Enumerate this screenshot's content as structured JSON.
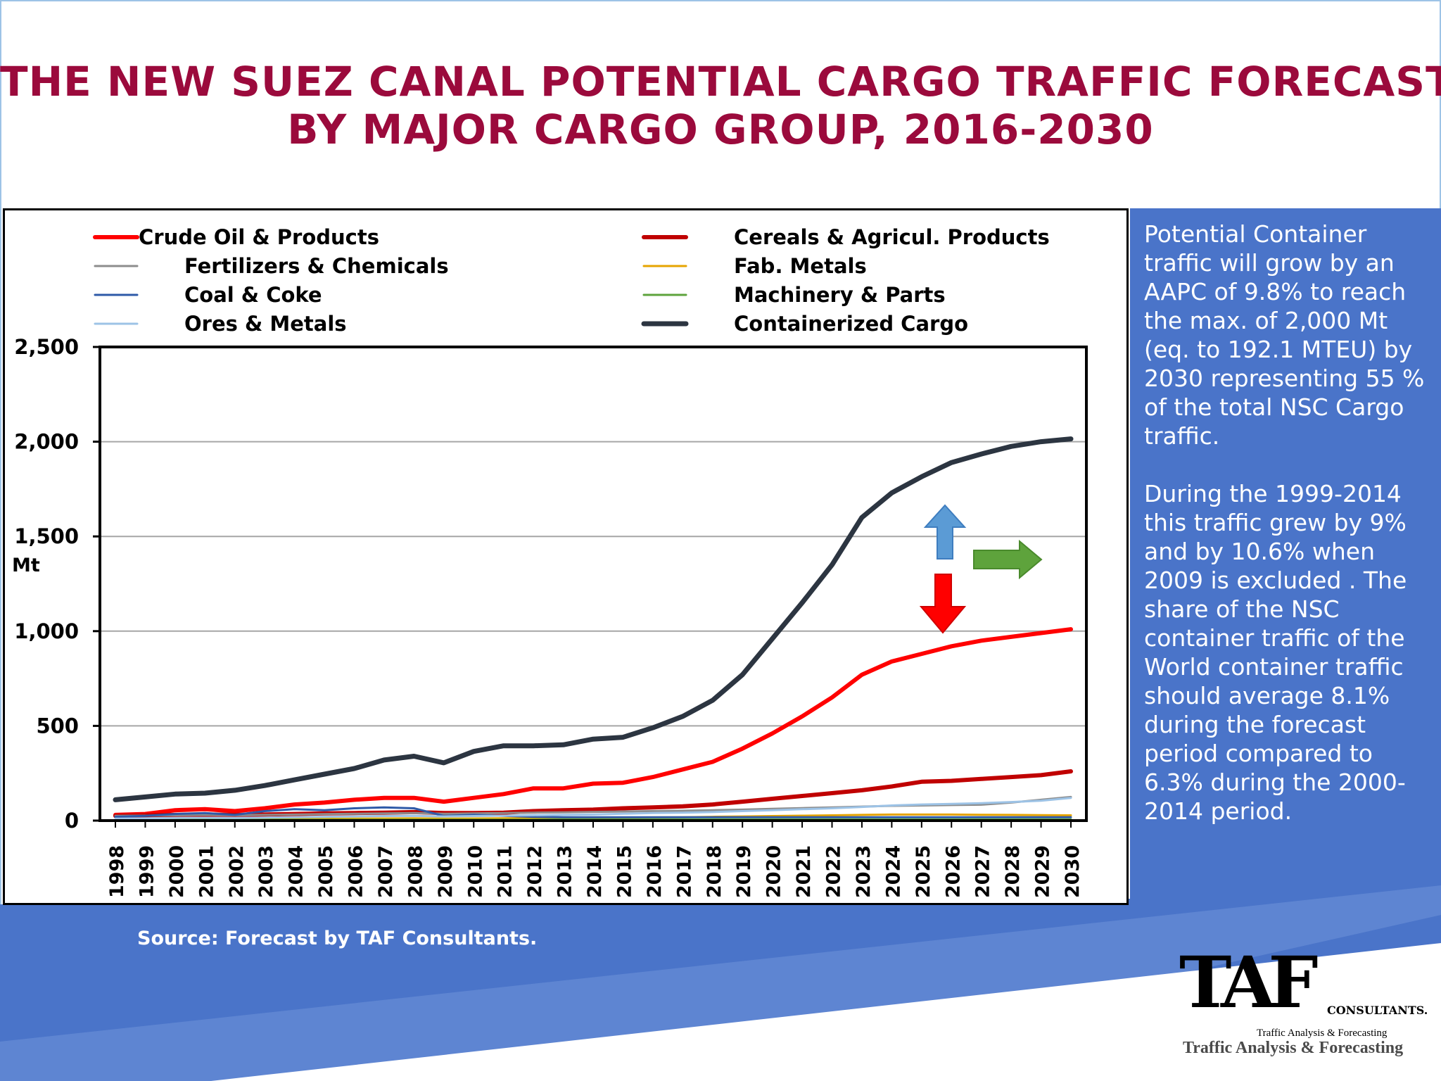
{
  "title": {
    "line1": "THE NEW SUEZ CANAL POTENTIAL CARGO TRAFFIC FORECAST",
    "line2": "BY MAJOR CARGO GROUP, 2016-2030"
  },
  "side_text": {
    "p1": "Potential Container traffic will grow by an AAPC of 9.8% to reach the max. of 2,000 Mt (eq. to 192.1 MTEU) by 2030 representing 55 % of the total NSC Cargo traffic.",
    "p2": "During the 1999-2014 this traffic grew by 9% and by 10.6% when 2009 is excluded . The share of the NSC container traffic of the World container traffic should average 8.1% during the forecast period compared to 6.3%  during the 2000-2014 period."
  },
  "source": "Source: Forecast by TAF Consultants.",
  "logo": {
    "main": "TAF",
    "word": "CONSULTANTS.",
    "tagline_small": "Traffic Analysis & Forecasting",
    "tagline": "Traffic Analysis & Forecasting"
  },
  "colors": {
    "title": "#9b0a3c",
    "blue_band": "#4a74c9",
    "arrow_up": "#5b9bd5",
    "arrow_right": "#5ea33c",
    "arrow_down": "#ff0000"
  },
  "chart_data": {
    "type": "line",
    "xlabel": "",
    "ylabel": "Mt",
    "ylim": [
      0,
      2500
    ],
    "yticks": [
      0,
      500,
      1000,
      1500,
      2000,
      2500
    ],
    "ytick_labels": [
      "0",
      "500",
      "1,000",
      "1,500",
      "2,000",
      "2,500"
    ],
    "grid": true,
    "legend_position": "top",
    "x": [
      "1998",
      "1999",
      "2000",
      "2001",
      "2002",
      "2003",
      "2004",
      "2005",
      "2006",
      "2007",
      "2008",
      "2009",
      "2010",
      "2011",
      "2012",
      "2013",
      "2014",
      "2015",
      "2016",
      "2017",
      "2018",
      "2019",
      "2020",
      "2021",
      "2022",
      "2023",
      "2024",
      "2025",
      "2026",
      "2027",
      "2028",
      "2029",
      "2030"
    ],
    "series": [
      {
        "name": "Crude Oil & Products",
        "color": "#ff0000",
        "width": 6,
        "values": [
          30,
          35,
          55,
          60,
          50,
          65,
          85,
          95,
          110,
          120,
          120,
          100,
          120,
          140,
          170,
          170,
          195,
          200,
          230,
          270,
          310,
          380,
          460,
          550,
          650,
          770,
          840,
          880,
          920,
          950,
          970,
          990,
          1010
        ]
      },
      {
        "name": "Cereals & Agricul. Products",
        "color": "#c00000",
        "width": 6,
        "values": [
          25,
          28,
          30,
          32,
          30,
          32,
          35,
          38,
          40,
          42,
          45,
          40,
          40,
          42,
          50,
          55,
          58,
          65,
          70,
          75,
          85,
          100,
          115,
          130,
          145,
          160,
          180,
          205,
          210,
          220,
          230,
          240,
          260
        ]
      },
      {
        "name": "Fertilizers & Chemicals",
        "color": "#8c8c8c",
        "width": 3,
        "values": [
          25,
          26,
          28,
          30,
          28,
          30,
          32,
          34,
          36,
          38,
          40,
          36,
          38,
          40,
          42,
          44,
          46,
          48,
          50,
          52,
          55,
          58,
          62,
          66,
          70,
          74,
          78,
          80,
          82,
          84,
          95,
          110,
          125
        ]
      },
      {
        "name": "Fab.  Metals",
        "color": "#e6a400",
        "width": 3,
        "values": [
          5,
          5,
          6,
          6,
          6,
          7,
          8,
          9,
          10,
          11,
          12,
          10,
          11,
          12,
          13,
          14,
          15,
          16,
          17,
          18,
          20,
          22,
          24,
          26,
          28,
          30,
          32,
          32,
          32,
          31,
          30,
          29,
          28
        ]
      },
      {
        "name": "Coal & Coke",
        "color": "#2e5aa8",
        "width": 3,
        "values": [
          20,
          25,
          35,
          40,
          30,
          50,
          60,
          55,
          65,
          70,
          65,
          25,
          30,
          25,
          20,
          18,
          18,
          18,
          18,
          18,
          18,
          18,
          18,
          18,
          18,
          18,
          18,
          18,
          18,
          18,
          18,
          18,
          18
        ]
      },
      {
        "name": "Machinery & Parts",
        "color": "#5ea33c",
        "width": 3,
        "values": [
          5,
          5,
          5,
          5,
          5,
          5,
          5,
          5,
          5,
          5,
          5,
          5,
          5,
          5,
          5,
          6,
          6,
          6,
          6,
          6,
          6,
          6,
          6,
          6,
          6,
          6,
          6,
          6,
          6,
          6,
          6,
          6,
          6
        ]
      },
      {
        "name": "Ores & Metals",
        "color": "#9dc3e6",
        "width": 3,
        "values": [
          10,
          12,
          14,
          15,
          14,
          16,
          18,
          20,
          22,
          24,
          25,
          22,
          24,
          26,
          28,
          30,
          32,
          36,
          40,
          42,
          45,
          50,
          55,
          60,
          65,
          72,
          80,
          85,
          88,
          92,
          98,
          105,
          120
        ]
      },
      {
        "name": "Containerized Cargo",
        "color": "#2c3541",
        "width": 7,
        "values": [
          110,
          125,
          140,
          145,
          160,
          185,
          215,
          245,
          275,
          320,
          340,
          305,
          365,
          395,
          395,
          400,
          430,
          440,
          490,
          550,
          635,
          770,
          960,
          1150,
          1350,
          1600,
          1730,
          1815,
          1890,
          1935,
          1975,
          2000,
          2015
        ]
      }
    ]
  }
}
